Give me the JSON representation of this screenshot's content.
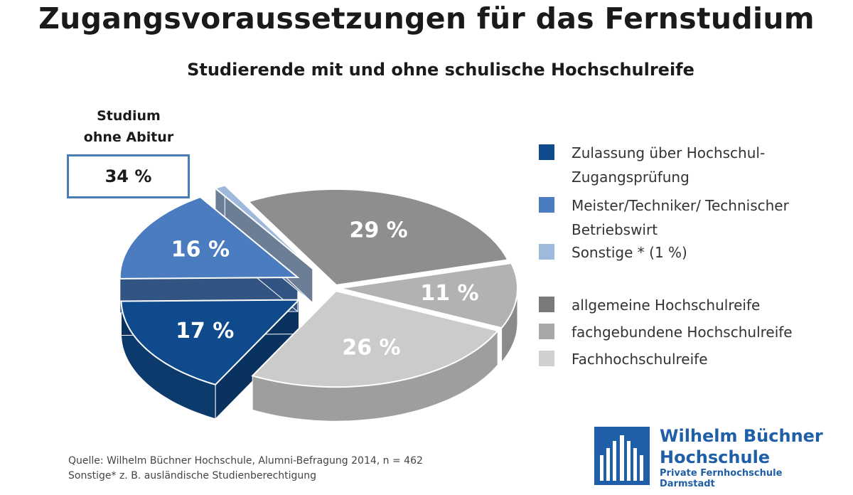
{
  "title": "Zugangsvoraussetzungen für das Fernstudium",
  "subtitle": "Studierende mit und ohne schulische Hochschulreife",
  "callout": {
    "label_line1": "Studium",
    "label_line2": "ohne Abitur",
    "value": "34 %"
  },
  "chart_data": {
    "type": "pie",
    "three_d": true,
    "slices": [
      {
        "label": "Zulassung über Hochschul-Zugangsprüfung",
        "value": 17,
        "value_label": "17 %",
        "color": "#0f4a8c",
        "group": "ohne Abitur"
      },
      {
        "label": "Meister/Techniker/Technischer Betriebswirt",
        "value": 16,
        "value_label": "16 %",
        "color": "#4a7cbf",
        "group": "ohne Abitur"
      },
      {
        "label": "Sonstige * (1 %)",
        "value": 1,
        "value_label": "",
        "color": "#9fb9dd",
        "group": "ohne Abitur"
      },
      {
        "label": "allgemeine Hochschulreife",
        "value": 29,
        "value_label": "29 %",
        "color": "#8e8e8e",
        "group": "mit Abitur"
      },
      {
        "label": "fachgebundene Hochschulreife",
        "value": 11,
        "value_label": "11 %",
        "color": "#b2b2b2",
        "group": "mit Abitur"
      },
      {
        "label": "Fachhochschulreife",
        "value": 26,
        "value_label": "26 %",
        "color": "#cbcbcb",
        "group": "mit Abitur"
      }
    ]
  },
  "legend": [
    {
      "text": "Zulassung über Hochschul-Zugangsprüfung",
      "color": "#0f4a8c"
    },
    {
      "text": "Meister/Techniker/ Technischer Betriebswirt",
      "color": "#4a7cbf"
    },
    {
      "text": "Sonstige * (1 %)",
      "color": "#9fb9dd"
    },
    {
      "text": "allgemeine Hochschulreife",
      "color": "#7a7a7a"
    },
    {
      "text": "fachgebundene Hochschulreife",
      "color": "#a8a8a8"
    },
    {
      "text": "Fachhochschulreife",
      "color": "#d0d0d0"
    }
  ],
  "source": {
    "line1": "Quelle: Wilhelm Büchner Hochschule, Alumni-Befragung 2014, n = 462",
    "line2": "Sonstige* z. B. ausländische Studienberechtigung"
  },
  "logo": {
    "line1": "Wilhelm Büchner",
    "line2": "Hochschule",
    "tagline": "Private Fernhochschule Darmstadt",
    "color": "#1f5fa8"
  }
}
